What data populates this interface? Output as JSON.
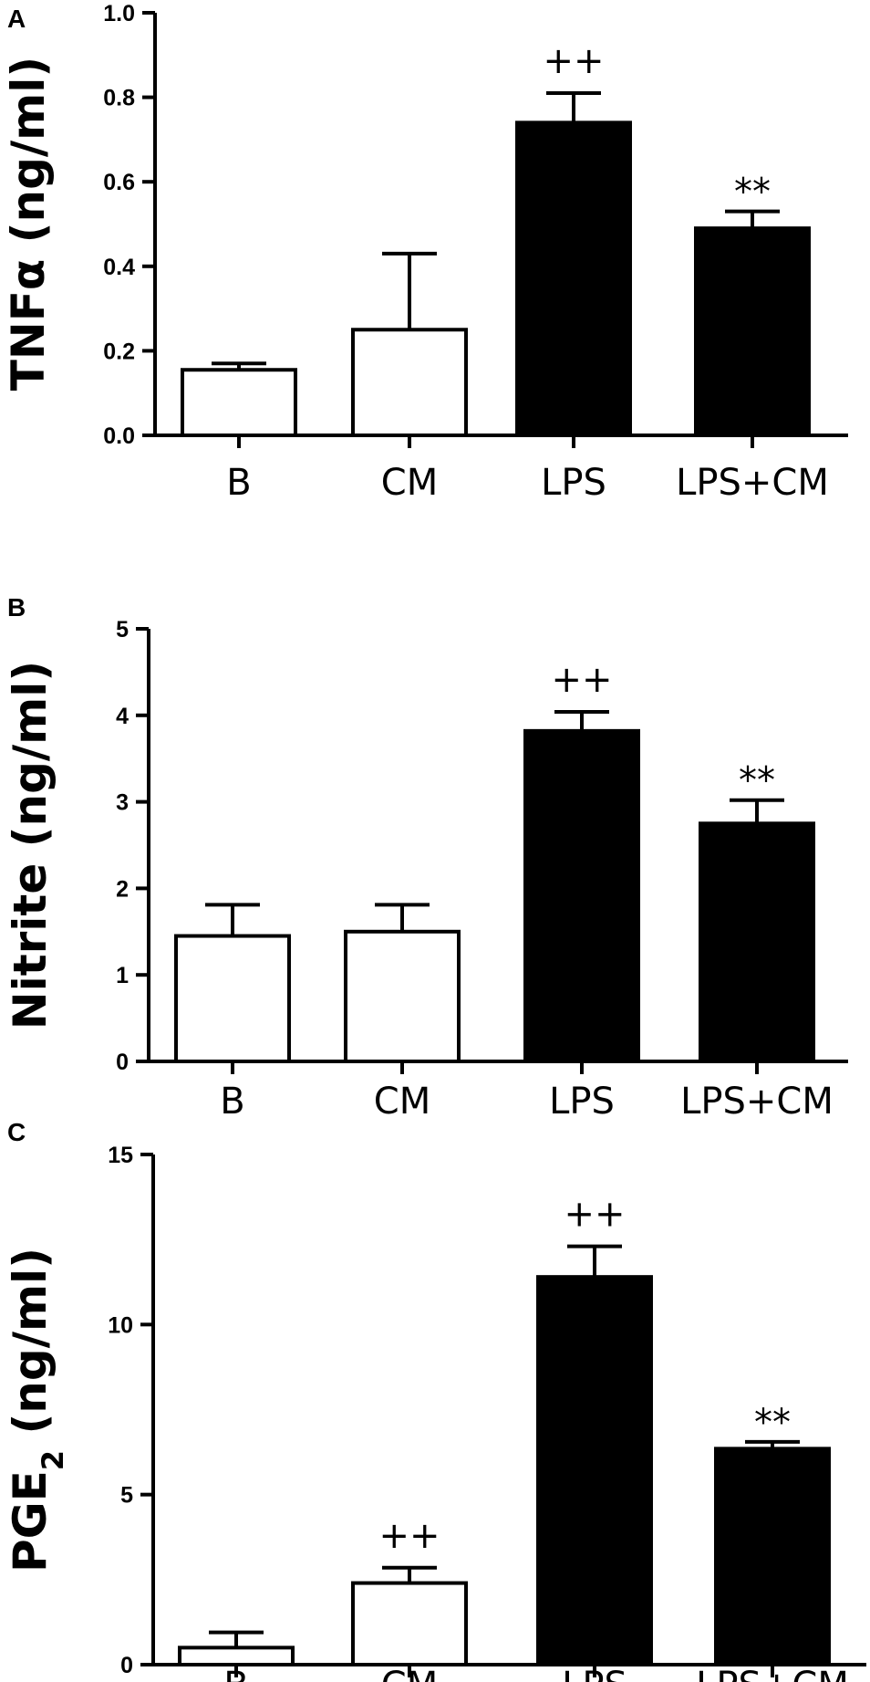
{
  "chart_data": [
    {
      "panel": "A",
      "type": "bar",
      "categories": [
        "B",
        "CM",
        "LPS",
        "LPS+CM"
      ],
      "values": [
        0.155,
        0.25,
        0.74,
        0.49
      ],
      "errors": [
        0.015,
        0.18,
        0.07,
        0.04
      ],
      "fills": [
        "#ffffff",
        "#ffffff",
        "#000000",
        "#000000"
      ],
      "significance": [
        "",
        "",
        "++",
        "**"
      ],
      "ylabel": "TNFα (ng/ml)",
      "ylim": [
        0,
        1.0
      ],
      "yticks": [
        0,
        0.2,
        0.4,
        0.6,
        0.8,
        1.0
      ],
      "ytick_labels": [
        "0.0",
        "0.2",
        "0.4",
        "0.6",
        "0.8",
        "1.0"
      ],
      "grid": false
    },
    {
      "panel": "B",
      "type": "bar",
      "categories": [
        "B",
        "CM",
        "LPS",
        "LPS+CM"
      ],
      "values": [
        1.45,
        1.5,
        3.82,
        2.75
      ],
      "errors": [
        0.36,
        0.31,
        0.22,
        0.27
      ],
      "fills": [
        "#ffffff",
        "#ffffff",
        "#000000",
        "#000000"
      ],
      "significance": [
        "",
        "",
        "++",
        "**"
      ],
      "ylabel": "Nitrite (ng/ml)",
      "ylim": [
        0,
        5
      ],
      "yticks": [
        0,
        1,
        2,
        3,
        4,
        5
      ],
      "ytick_labels": [
        "0",
        "1",
        "2",
        "3",
        "4",
        "5"
      ],
      "grid": false
    },
    {
      "panel": "C",
      "type": "bar",
      "categories": [
        "B",
        "CM",
        "LPS",
        "LPS+CM"
      ],
      "values": [
        0.5,
        2.4,
        11.4,
        6.35
      ],
      "errors": [
        0.45,
        0.45,
        0.9,
        0.2
      ],
      "fills": [
        "#ffffff",
        "#ffffff",
        "#000000",
        "#000000"
      ],
      "significance": [
        "",
        "++",
        "++",
        "**"
      ],
      "ylabel": "PGE",
      "ylabel_sub": "2",
      "ylabel_tail": " (ng/ml)",
      "ylim": [
        0,
        15
      ],
      "yticks": [
        0,
        5,
        10,
        15
      ],
      "ytick_labels": [
        "0",
        "5",
        "10",
        "15"
      ],
      "grid": false
    }
  ]
}
